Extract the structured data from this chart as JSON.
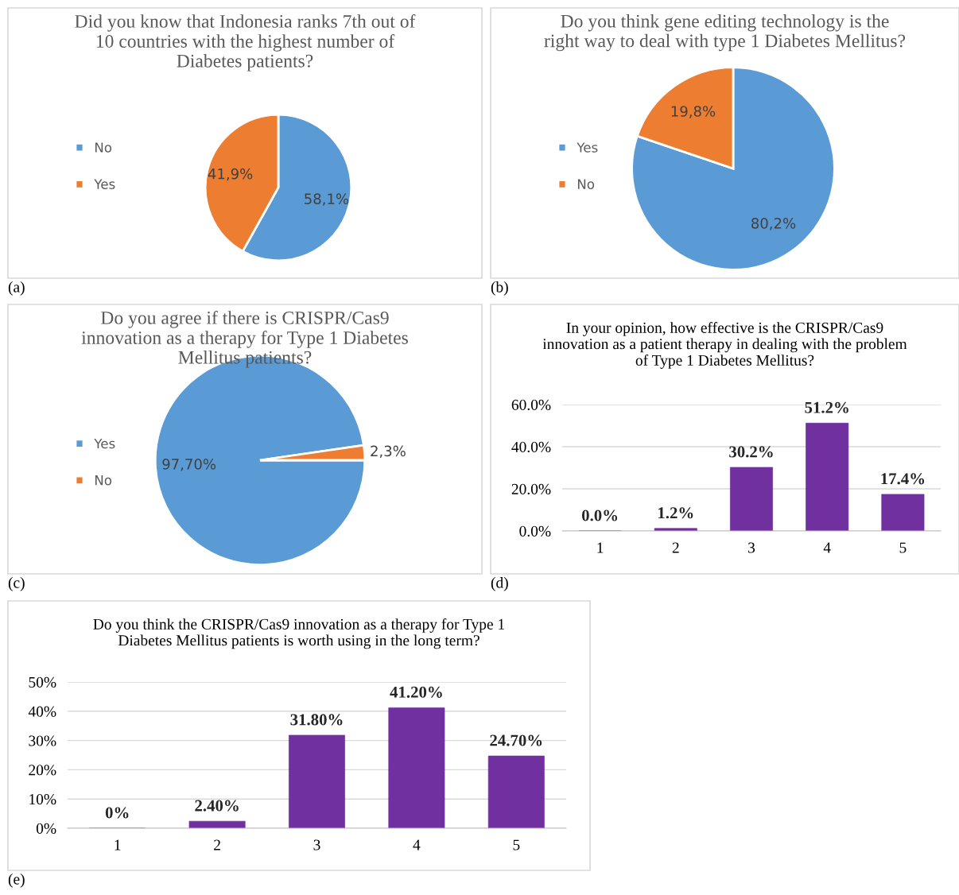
{
  "chart_data": [
    {
      "type": "pie",
      "title": "Did you know that Indonesia ranks 7th out of 10 countries with the highest number of Diabetes patients?",
      "categories": [
        "No",
        "Yes"
      ],
      "values": [
        58.1,
        41.9
      ],
      "value_labels": [
        "58,1%",
        "41,9%"
      ],
      "colors": [
        "#5b9bd5",
        "#ed7d31"
      ],
      "legend": "left",
      "annotations": [
        "(a)"
      ]
    },
    {
      "type": "pie",
      "title": "Do you think gene editing technology is the right way to deal with type 1 Diabetes Mellitus?",
      "categories": [
        "Yes",
        "No"
      ],
      "values": [
        80.2,
        19.8
      ],
      "value_labels": [
        "80,2%",
        "19,8%"
      ],
      "colors": [
        "#5b9bd5",
        "#ed7d31"
      ],
      "legend": "left",
      "annotations": [
        "(b)"
      ]
    },
    {
      "type": "pie",
      "title": "Do you agree if there is CRISPR/Cas9 innovation as a therapy for Type 1 Diabetes Mellitus patients?",
      "categories": [
        "Yes",
        "No"
      ],
      "values": [
        97.7,
        2.3
      ],
      "value_labels": [
        "97,70%",
        "2,3%"
      ],
      "colors": [
        "#5b9bd5",
        "#ed7d31"
      ],
      "legend": "left",
      "annotations": [
        "(c)"
      ]
    },
    {
      "type": "bar",
      "title": "In your opinion, how effective is the CRISPR/Cas9 innovation as a patient therapy in dealing with the problem of Type 1 Diabetes Mellitus?",
      "categories": [
        "1",
        "2",
        "3",
        "4",
        "5"
      ],
      "values": [
        0,
        1.2,
        30.2,
        51.2,
        17.4
      ],
      "value_labels": [
        "0.0%",
        "1.2%",
        "30.2%",
        "51.2%",
        "17.4%"
      ],
      "color": "#7030a0",
      "ylim": [
        0,
        60
      ],
      "yticks": [
        {
          "value": 0,
          "label": "0.0%"
        },
        {
          "value": 20,
          "label": "20.0%"
        },
        {
          "value": 40,
          "label": "40.0%"
        },
        {
          "value": 60,
          "label": "60.0%"
        }
      ],
      "grid": "y",
      "annotations": [
        "(d)"
      ]
    },
    {
      "type": "bar",
      "title": "Do you think the CRISPR/Cas9 innovation as a therapy for Type 1 Diabetes Mellitus patients is worth using in the long term?",
      "categories": [
        "1",
        "2",
        "3",
        "4",
        "5"
      ],
      "values": [
        0,
        2.4,
        31.8,
        41.2,
        24.7
      ],
      "value_labels": [
        "0%",
        "2.40%",
        "31.80%",
        "41.20%",
        "24.70%"
      ],
      "color": "#7030a0",
      "ylim": [
        0,
        50
      ],
      "yticks": [
        {
          "value": 0,
          "label": "0%"
        },
        {
          "value": 10,
          "label": "10%"
        },
        {
          "value": 20,
          "label": "20%"
        },
        {
          "value": 30,
          "label": "30%"
        },
        {
          "value": 40,
          "label": "40%"
        },
        {
          "value": 50,
          "label": "50%"
        }
      ],
      "grid": "y",
      "annotations": [
        "(e)"
      ]
    }
  ]
}
